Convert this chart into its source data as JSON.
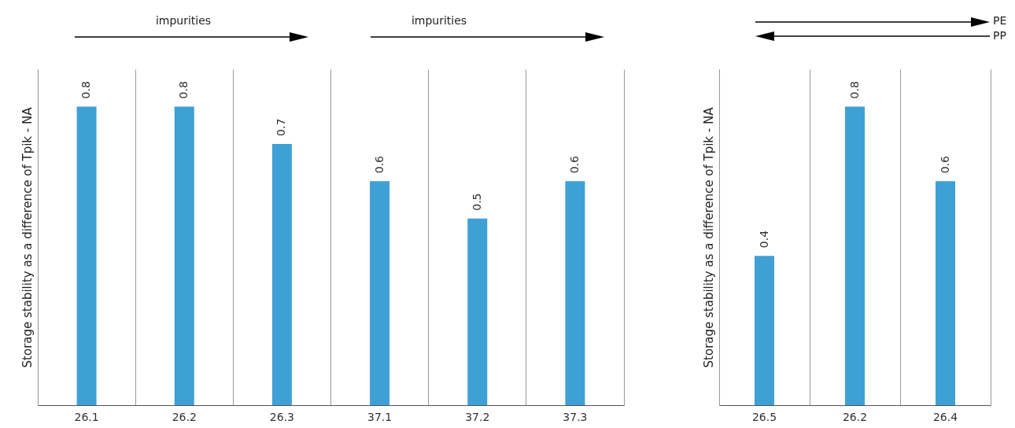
{
  "chart_data": [
    {
      "type": "bar",
      "ylabel": "Storage stability as a difference of Tpik - NA",
      "categories": [
        "26.1",
        "26.2",
        "26.3",
        "37.1",
        "37.2",
        "37.3"
      ],
      "values": [
        0.8,
        0.8,
        0.7,
        0.6,
        0.5,
        0.6
      ],
      "color": "#3fa0d6",
      "ylim": [
        0,
        0.9
      ],
      "data_labels": true,
      "grid": "x",
      "tick_labels": "x",
      "annotations": [
        "impurities",
        "impurities"
      ]
    },
    {
      "type": "bar",
      "ylabel": "Storage stability as a difference of Tpik - NA",
      "categories": [
        "26.5",
        "26.2",
        "26.4"
      ],
      "values": [
        0.4,
        0.8,
        0.6
      ],
      "color": "#3fa0d6",
      "ylim": [
        0,
        0.9
      ],
      "data_labels": true,
      "grid": "x",
      "tick_labels": "x",
      "annotations": [
        "PE",
        "PP"
      ]
    }
  ]
}
